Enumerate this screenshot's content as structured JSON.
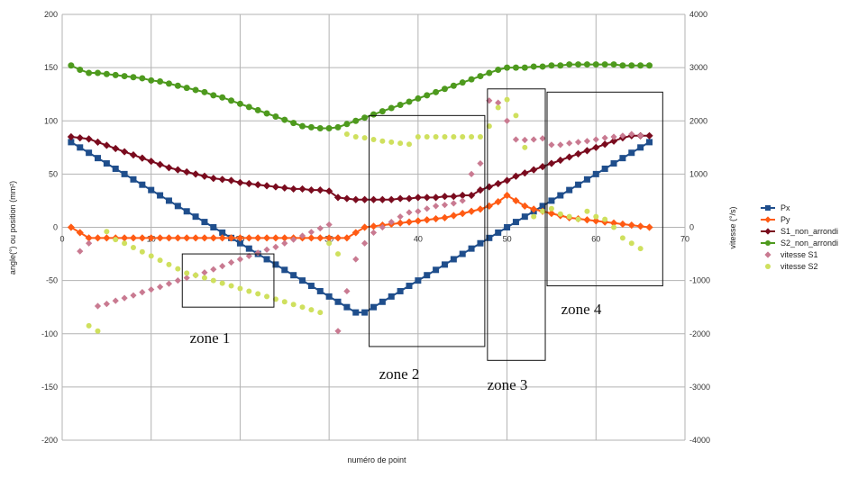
{
  "chart_data": {
    "type": "line",
    "xlabel": "numéro de point",
    "ylabel_left": "angle(°) ou position (mm²)",
    "ylabel_right": "vitesse (°/s)",
    "xlim": [
      0,
      70
    ],
    "ylim_left": [
      -200,
      200
    ],
    "ylim_right": [
      -4000,
      4000
    ],
    "x_ticks": [
      0,
      10,
      20,
      30,
      40,
      50,
      60,
      70
    ],
    "y_ticks_left": [
      -200,
      -150,
      -100,
      -50,
      0,
      50,
      100,
      150,
      200
    ],
    "y_ticks_right": [
      -4000,
      -3000,
      -2000,
      -1000,
      0,
      1000,
      2000,
      3000,
      4000
    ],
    "grid": true,
    "legend_position": "right",
    "series": [
      {
        "name": "Px",
        "axis": "left",
        "color": "#1f4e8c",
        "marker": "square",
        "x": [
          1,
          2,
          3,
          4,
          5,
          6,
          7,
          8,
          9,
          10,
          11,
          12,
          13,
          14,
          15,
          16,
          17,
          18,
          19,
          20,
          21,
          22,
          23,
          24,
          25,
          26,
          27,
          28,
          29,
          30,
          31,
          32,
          33,
          34,
          35,
          36,
          37,
          38,
          39,
          40,
          41,
          42,
          43,
          44,
          45,
          46,
          47,
          48,
          49,
          50,
          51,
          52,
          53,
          54,
          55,
          56,
          57,
          58,
          59,
          60,
          61,
          62,
          63,
          64,
          65,
          66
        ],
        "y": [
          80,
          75,
          70,
          65,
          60,
          55,
          50,
          45,
          40,
          35,
          30,
          25,
          20,
          15,
          10,
          5,
          0,
          -5,
          -10,
          -15,
          -20,
          -25,
          -30,
          -35,
          -40,
          -45,
          -50,
          -55,
          -60,
          -65,
          -70,
          -75,
          -80,
          -80,
          -75,
          -70,
          -65,
          -60,
          -55,
          -50,
          -45,
          -40,
          -35,
          -30,
          -25,
          -20,
          -15,
          -10,
          -5,
          0,
          5,
          10,
          15,
          20,
          25,
          30,
          35,
          40,
          45,
          50,
          55,
          60,
          65,
          70,
          75,
          80
        ]
      },
      {
        "name": "Py",
        "axis": "left",
        "color": "#ff5b14",
        "marker": "diamond",
        "x": [
          1,
          2,
          3,
          4,
          5,
          6,
          7,
          8,
          9,
          10,
          11,
          12,
          13,
          14,
          15,
          16,
          17,
          18,
          19,
          20,
          21,
          22,
          23,
          24,
          25,
          26,
          27,
          28,
          29,
          30,
          31,
          32,
          33,
          34,
          35,
          36,
          37,
          38,
          39,
          40,
          41,
          42,
          43,
          44,
          45,
          46,
          47,
          48,
          49,
          50,
          51,
          52,
          53,
          54,
          55,
          56,
          57,
          58,
          59,
          60,
          61,
          62,
          63,
          64,
          65,
          66
        ],
        "y": [
          0,
          -5,
          -10,
          -10,
          -10,
          -10,
          -10,
          -10,
          -10,
          -10,
          -10,
          -10,
          -10,
          -10,
          -10,
          -10,
          -10,
          -10,
          -10,
          -10,
          -10,
          -10,
          -10,
          -10,
          -10,
          -10,
          -10,
          -10,
          -10,
          -10,
          -10,
          -10,
          -5,
          0,
          1,
          2,
          3,
          4,
          5,
          6,
          7,
          8,
          9,
          11,
          13,
          15,
          17,
          20,
          24,
          30,
          25,
          20,
          17,
          15,
          13,
          11,
          9,
          8,
          7,
          6,
          5,
          4,
          3,
          2,
          1,
          0
        ]
      },
      {
        "name": "S1_non_arrondi",
        "axis": "left",
        "color": "#7a0b1e",
        "marker": "diamond",
        "x": [
          1,
          2,
          3,
          4,
          5,
          6,
          7,
          8,
          9,
          10,
          11,
          12,
          13,
          14,
          15,
          16,
          17,
          18,
          19,
          20,
          21,
          22,
          23,
          24,
          25,
          26,
          27,
          28,
          29,
          30,
          31,
          32,
          33,
          34,
          35,
          36,
          37,
          38,
          39,
          40,
          41,
          42,
          43,
          44,
          45,
          46,
          47,
          48,
          49,
          50,
          51,
          52,
          53,
          54,
          55,
          56,
          57,
          58,
          59,
          60,
          61,
          62,
          63,
          64,
          65,
          66
        ],
        "y": [
          85,
          84,
          83,
          80,
          77,
          74,
          71,
          68,
          65,
          62,
          59,
          56,
          54,
          52,
          50,
          48,
          46,
          45,
          44,
          42,
          41,
          40,
          39,
          38,
          37,
          36,
          36,
          35,
          35,
          34,
          28,
          27,
          26,
          26,
          26,
          26,
          26,
          27,
          27,
          28,
          28,
          28,
          29,
          29,
          30,
          30,
          35,
          38,
          41,
          44,
          48,
          51,
          54,
          57,
          60,
          63,
          66,
          69,
          72,
          75,
          78,
          81,
          84,
          86,
          86,
          86
        ]
      },
      {
        "name": "S2_non_arrondi",
        "axis": "left",
        "color": "#4e9a1e",
        "marker": "circle",
        "x": [
          1,
          2,
          3,
          4,
          5,
          6,
          7,
          8,
          9,
          10,
          11,
          12,
          13,
          14,
          15,
          16,
          17,
          18,
          19,
          20,
          21,
          22,
          23,
          24,
          25,
          26,
          27,
          28,
          29,
          30,
          31,
          32,
          33,
          34,
          35,
          36,
          37,
          38,
          39,
          40,
          41,
          42,
          43,
          44,
          45,
          46,
          47,
          48,
          49,
          50,
          51,
          52,
          53,
          54,
          55,
          56,
          57,
          58,
          59,
          60,
          61,
          62,
          63,
          64,
          65,
          66
        ],
        "y": [
          152,
          148,
          145,
          145,
          144,
          143,
          142,
          141,
          140,
          138,
          137,
          135,
          133,
          131,
          129,
          127,
          124,
          122,
          119,
          116,
          113,
          110,
          107,
          104,
          101,
          98,
          95,
          94,
          93,
          93,
          94,
          97,
          100,
          103,
          106,
          109,
          112,
          115,
          118,
          121,
          124,
          127,
          130,
          133,
          136,
          139,
          142,
          145,
          148,
          150,
          150,
          150,
          151,
          151,
          152,
          152,
          153,
          153,
          153,
          153,
          153,
          153,
          152,
          152,
          152,
          152
        ]
      },
      {
        "name": "vitesse S1",
        "axis": "right",
        "color": "#c97a91",
        "marker": "diamond",
        "x": [
          2,
          3,
          4,
          5,
          6,
          7,
          8,
          9,
          10,
          11,
          12,
          13,
          14,
          15,
          16,
          17,
          18,
          19,
          20,
          21,
          22,
          23,
          24,
          25,
          26,
          27,
          28,
          29,
          30,
          31,
          32,
          33,
          34,
          35,
          36,
          37,
          38,
          39,
          40,
          41,
          42,
          43,
          44,
          45,
          46,
          47,
          48,
          49,
          50,
          51,
          52,
          53,
          54,
          55,
          56,
          57,
          58,
          59,
          60,
          61,
          62,
          63,
          64,
          65
        ],
        "y": [
          -450,
          -300,
          -1480,
          -1440,
          -1380,
          -1330,
          -1280,
          -1220,
          -1170,
          -1120,
          -1060,
          -1000,
          -950,
          -900,
          -850,
          -790,
          -730,
          -660,
          -600,
          -540,
          -480,
          -420,
          -370,
          -300,
          -230,
          -160,
          -90,
          -20,
          50,
          -1950,
          -1200,
          -600,
          -300,
          -100,
          0,
          100,
          200,
          280,
          300,
          350,
          400,
          420,
          450,
          500,
          1000,
          1200,
          2380,
          2340,
          2000,
          1650,
          1640,
          1650,
          1670,
          1550,
          1550,
          1580,
          1600,
          1620,
          1650,
          1680,
          1700,
          1720,
          1750,
          1720
        ]
      },
      {
        "name": "vitesse S2",
        "axis": "right",
        "color": "#cfe05e",
        "marker": "circle",
        "x": [
          3,
          4,
          5,
          6,
          7,
          8,
          9,
          10,
          11,
          12,
          13,
          14,
          15,
          16,
          17,
          18,
          19,
          20,
          21,
          22,
          23,
          24,
          25,
          26,
          27,
          28,
          29,
          30,
          31,
          32,
          33,
          34,
          35,
          36,
          37,
          38,
          39,
          40,
          41,
          42,
          43,
          44,
          45,
          46,
          47,
          48,
          49,
          50,
          51,
          52,
          53,
          54,
          55,
          56,
          57,
          58,
          59,
          60,
          61,
          62,
          63,
          64,
          65
        ],
        "y": [
          -1850,
          -1950,
          -80,
          -230,
          -300,
          -380,
          -460,
          -540,
          -620,
          -700,
          -780,
          -860,
          -900,
          -950,
          -1000,
          -1050,
          -1100,
          -1150,
          -1200,
          -1250,
          -1300,
          -1350,
          -1400,
          -1450,
          -1500,
          -1550,
          -1600,
          -300,
          -500,
          1750,
          1700,
          1680,
          1650,
          1620,
          1600,
          1580,
          1560,
          1700,
          1700,
          1700,
          1700,
          1700,
          1700,
          1700,
          1700,
          1900,
          2250,
          2400,
          2100,
          1500,
          200,
          300,
          350,
          250,
          200,
          150,
          300,
          200,
          150,
          0,
          -200,
          -300,
          -400
        ]
      }
    ],
    "annotations": [
      {
        "label": "zone 1",
        "x_range": [
          13.5,
          23.8
        ],
        "y_range": [
          -75,
          -25
        ]
      },
      {
        "label": "zone 2",
        "x_range": [
          34.5,
          47.5
        ],
        "y_range": [
          -112,
          105
        ]
      },
      {
        "label": "zone 3",
        "x_range": [
          47.8,
          54.3
        ],
        "y_range": [
          -125,
          130
        ]
      },
      {
        "label": "zone 4",
        "x_range": [
          54.5,
          67.5
        ],
        "y_range": [
          -55,
          127
        ]
      }
    ]
  }
}
